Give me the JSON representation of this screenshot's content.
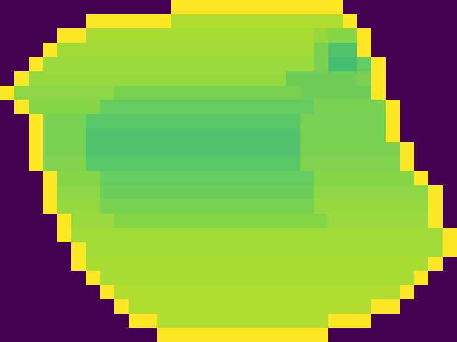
{
  "chart_data": {
    "type": "heatmap",
    "color": "viridis",
    "color_range": [
      0,
      100
    ],
    "tick_labels": false,
    "cells": [
      [
        0,
        0,
        0,
        0,
        0,
        0,
        0,
        0,
        0,
        0,
        0,
        0,
        100,
        100,
        100,
        100,
        100,
        100,
        100,
        100,
        100,
        100,
        100,
        100,
        0,
        0,
        0,
        0,
        0,
        0,
        0,
        0
      ],
      [
        0,
        0,
        0,
        0,
        0,
        0,
        100,
        100,
        100,
        100,
        100,
        100,
        88,
        88,
        88,
        88,
        88,
        88,
        88,
        88,
        88,
        88,
        88,
        88,
        100,
        0,
        0,
        0,
        0,
        0,
        0,
        0
      ],
      [
        0,
        0,
        0,
        0,
        100,
        100,
        87,
        87,
        87,
        87,
        87,
        87,
        87,
        87,
        87,
        87,
        87,
        87,
        87,
        87,
        87,
        87,
        84,
        82,
        82,
        100,
        0,
        0,
        0,
        0,
        0,
        0
      ],
      [
        0,
        0,
        0,
        100,
        86,
        86,
        86,
        86,
        86,
        86,
        86,
        86,
        86,
        86,
        86,
        86,
        86,
        86,
        86,
        86,
        86,
        86,
        80,
        72,
        72,
        100,
        0,
        0,
        0,
        0,
        0,
        0
      ],
      [
        0,
        0,
        100,
        85,
        85,
        85,
        85,
        85,
        85,
        85,
        85,
        85,
        85,
        85,
        85,
        85,
        85,
        85,
        85,
        85,
        85,
        85,
        80,
        70,
        70,
        76,
        100,
        0,
        0,
        0,
        0,
        0
      ],
      [
        0,
        100,
        84,
        84,
        84,
        84,
        84,
        84,
        84,
        84,
        84,
        84,
        84,
        84,
        84,
        84,
        84,
        84,
        84,
        84,
        78,
        78,
        78,
        78,
        78,
        80,
        100,
        0,
        0,
        0,
        0,
        0
      ],
      [
        100,
        83,
        83,
        83,
        83,
        83,
        83,
        83,
        80,
        80,
        80,
        80,
        80,
        80,
        80,
        80,
        80,
        80,
        80,
        80,
        80,
        78,
        78,
        78,
        78,
        78,
        100,
        0,
        0,
        0,
        0,
        0
      ],
      [
        0,
        100,
        82,
        82,
        82,
        82,
        82,
        76,
        76,
        76,
        76,
        76,
        76,
        76,
        76,
        76,
        76,
        76,
        76,
        76,
        76,
        76,
        80,
        80,
        80,
        80,
        80,
        100,
        0,
        0,
        0,
        0
      ],
      [
        0,
        0,
        100,
        80,
        80,
        80,
        74,
        74,
        74,
        74,
        74,
        74,
        74,
        74,
        74,
        74,
        74,
        74,
        74,
        74,
        74,
        79,
        79,
        79,
        79,
        79,
        79,
        100,
        0,
        0,
        0,
        0
      ],
      [
        0,
        0,
        100,
        80,
        80,
        80,
        72,
        72,
        72,
        72,
        72,
        72,
        72,
        72,
        72,
        72,
        72,
        72,
        72,
        72,
        72,
        79,
        79,
        79,
        79,
        79,
        79,
        100,
        0,
        0,
        0,
        0
      ],
      [
        0,
        0,
        100,
        80,
        80,
        80,
        72,
        72,
        72,
        72,
        72,
        72,
        72,
        72,
        72,
        72,
        72,
        72,
        72,
        72,
        72,
        80,
        80,
        80,
        80,
        80,
        80,
        80,
        100,
        0,
        0,
        0
      ],
      [
        0,
        0,
        100,
        81,
        81,
        81,
        74,
        74,
        74,
        74,
        74,
        74,
        74,
        74,
        74,
        74,
        74,
        74,
        74,
        74,
        74,
        81,
        81,
        81,
        81,
        81,
        81,
        81,
        100,
        0,
        0,
        0
      ],
      [
        0,
        0,
        0,
        100,
        82,
        82,
        82,
        76,
        76,
        76,
        76,
        76,
        76,
        76,
        76,
        76,
        76,
        76,
        76,
        76,
        76,
        76,
        82,
        82,
        82,
        82,
        82,
        82,
        82,
        100,
        0,
        0
      ],
      [
        0,
        0,
        0,
        100,
        83,
        83,
        83,
        78,
        78,
        78,
        78,
        78,
        78,
        78,
        78,
        78,
        78,
        78,
        78,
        78,
        78,
        78,
        83,
        83,
        83,
        83,
        83,
        83,
        83,
        83,
        100,
        0
      ],
      [
        0,
        0,
        0,
        100,
        84,
        84,
        84,
        80,
        80,
        80,
        80,
        80,
        80,
        80,
        80,
        80,
        80,
        80,
        80,
        80,
        80,
        80,
        84,
        84,
        84,
        84,
        84,
        84,
        84,
        84,
        100,
        0
      ],
      [
        0,
        0,
        0,
        0,
        100,
        85,
        85,
        85,
        82,
        82,
        82,
        82,
        82,
        82,
        82,
        82,
        82,
        82,
        82,
        82,
        82,
        82,
        82,
        85,
        85,
        85,
        85,
        85,
        85,
        85,
        100,
        0
      ],
      [
        0,
        0,
        0,
        0,
        100,
        86,
        86,
        86,
        86,
        86,
        86,
        86,
        86,
        86,
        86,
        86,
        86,
        86,
        86,
        86,
        86,
        86,
        86,
        86,
        86,
        86,
        86,
        86,
        86,
        86,
        86,
        100
      ],
      [
        0,
        0,
        0,
        0,
        0,
        100,
        86,
        86,
        86,
        86,
        86,
        86,
        86,
        86,
        86,
        86,
        86,
        86,
        86,
        86,
        86,
        86,
        86,
        86,
        86,
        86,
        86,
        86,
        86,
        86,
        86,
        100
      ],
      [
        0,
        0,
        0,
        0,
        0,
        100,
        87,
        87,
        87,
        87,
        87,
        87,
        87,
        87,
        87,
        87,
        87,
        87,
        87,
        87,
        87,
        87,
        87,
        87,
        87,
        87,
        87,
        87,
        87,
        87,
        100,
        0
      ],
      [
        0,
        0,
        0,
        0,
        0,
        0,
        100,
        87,
        87,
        87,
        87,
        87,
        87,
        87,
        87,
        87,
        87,
        87,
        87,
        87,
        87,
        87,
        87,
        87,
        87,
        87,
        87,
        87,
        87,
        100,
        0,
        0
      ],
      [
        0,
        0,
        0,
        0,
        0,
        0,
        0,
        100,
        88,
        88,
        88,
        88,
        88,
        88,
        88,
        88,
        88,
        88,
        88,
        88,
        88,
        88,
        88,
        88,
        88,
        88,
        88,
        88,
        100,
        0,
        0,
        0
      ],
      [
        0,
        0,
        0,
        0,
        0,
        0,
        0,
        0,
        100,
        88,
        88,
        88,
        88,
        88,
        88,
        88,
        88,
        88,
        88,
        88,
        88,
        88,
        88,
        88,
        88,
        88,
        100,
        100,
        0,
        0,
        0,
        0
      ],
      [
        0,
        0,
        0,
        0,
        0,
        0,
        0,
        0,
        0,
        100,
        100,
        88,
        88,
        88,
        88,
        88,
        88,
        88,
        88,
        88,
        88,
        88,
        88,
        100,
        100,
        100,
        0,
        0,
        0,
        0,
        0,
        0
      ],
      [
        0,
        0,
        0,
        0,
        0,
        0,
        0,
        0,
        0,
        0,
        0,
        100,
        100,
        100,
        100,
        100,
        100,
        100,
        100,
        100,
        100,
        100,
        100,
        0,
        0,
        0,
        0,
        0,
        0,
        0,
        0,
        0
      ]
    ]
  }
}
